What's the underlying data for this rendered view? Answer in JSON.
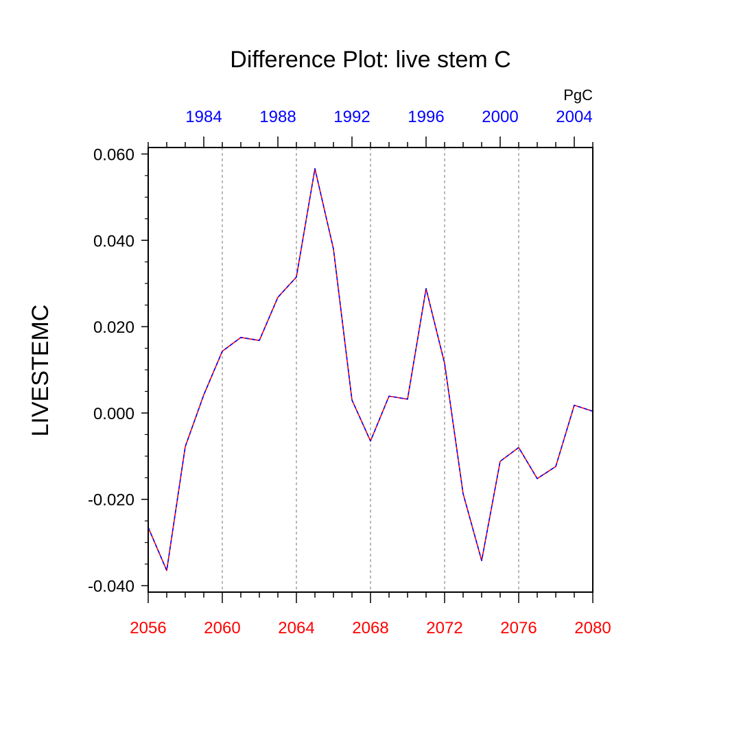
{
  "chart_data": {
    "type": "line",
    "title": "Difference Plot: live stem C",
    "ylabel": "LIVESTEMC",
    "units": "PgC",
    "xlim": [
      2056,
      2080
    ],
    "ylim": [
      -0.0415,
      0.0615
    ],
    "y_ticks": [
      "0.060",
      "0.040",
      "0.020",
      "0.000",
      "-0.020",
      "-0.040"
    ],
    "y_tick_values": [
      0.06,
      0.04,
      0.02,
      0.0,
      -0.02,
      -0.04
    ],
    "x_bottom_ticks": [
      "2056",
      "2060",
      "2064",
      "2068",
      "2072",
      "2076",
      "2080"
    ],
    "x_bottom_tick_values": [
      2056,
      2060,
      2064,
      2068,
      2072,
      2076,
      2080
    ],
    "x_top_ticks": [
      "1984",
      "1988",
      "1992",
      "1996",
      "2000",
      "2004"
    ],
    "x_top_tick_values": [
      2059,
      2063,
      2067,
      2071,
      2075,
      2079
    ],
    "gridlines_at": [
      2060,
      2064,
      2068,
      2072,
      2076
    ],
    "grid": "vertical dashed gray",
    "bottom_axis_color": "#ff0000",
    "top_axis_color": "#0000ff",
    "series": [
      {
        "color": "#ff0000",
        "dash": "solid",
        "x": [
          2056,
          2057,
          2058,
          2059,
          2060,
          2061,
          2062,
          2063,
          2064,
          2065,
          2066,
          2067,
          2068,
          2069,
          2070,
          2071,
          2072,
          2073,
          2074,
          2075,
          2076,
          2077,
          2078,
          2079,
          2080
        ],
        "values": [
          -0.0265,
          -0.0365,
          -0.0078,
          0.0042,
          0.0143,
          0.0175,
          0.0168,
          0.0268,
          0.0315,
          0.0566,
          0.038,
          0.003,
          -0.0065,
          0.0039,
          0.0032,
          0.0288,
          0.0115,
          -0.0187,
          -0.0342,
          -0.0112,
          -0.008,
          -0.0152,
          -0.0124,
          0.0018,
          0.0004
        ]
      },
      {
        "color": "#0000ff",
        "dash": "dashed",
        "x": [
          2056,
          2057,
          2058,
          2059,
          2060,
          2061,
          2062,
          2063,
          2064,
          2065,
          2066,
          2067,
          2068,
          2069,
          2070,
          2071,
          2072,
          2073,
          2074,
          2075,
          2076,
          2077,
          2078,
          2079,
          2080
        ],
        "values": [
          -0.0265,
          -0.0365,
          -0.0078,
          0.0042,
          0.0143,
          0.0175,
          0.0168,
          0.0268,
          0.0315,
          0.0566,
          0.038,
          0.003,
          -0.0065,
          0.0039,
          0.0032,
          0.0288,
          0.0115,
          -0.0187,
          -0.0342,
          -0.0112,
          -0.008,
          -0.0152,
          -0.0124,
          0.0018,
          0.0004
        ]
      }
    ]
  }
}
